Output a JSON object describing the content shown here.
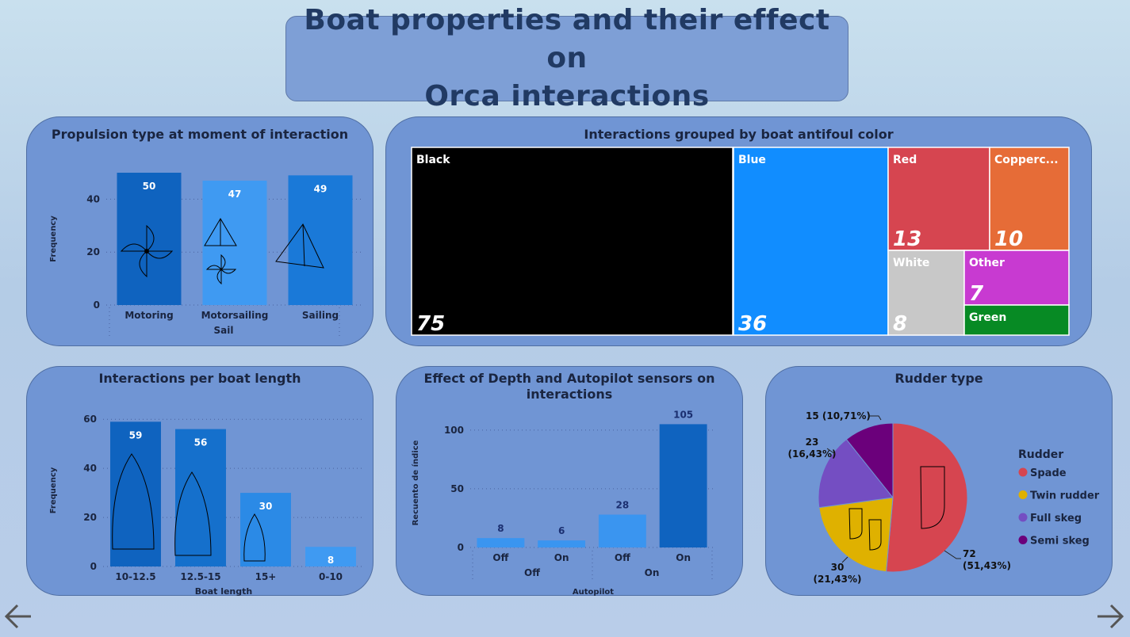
{
  "page": {
    "title_line1": "Boat properties and their effect on",
    "title_line2": "Orca interactions"
  },
  "propulsion": {
    "title": "Propulsion type at moment of interaction",
    "chart_data": {
      "type": "bar",
      "categories": [
        "Motoring",
        "Motorsailing",
        "Sailing"
      ],
      "values": [
        50,
        47,
        49
      ],
      "xlabel": "Sail",
      "ylabel": "Frequency",
      "yticks": [
        0,
        20,
        40
      ],
      "ylim": [
        0,
        50
      ],
      "colors": [
        "#0f63bf",
        "#3f9af2",
        "#1a79d8"
      ]
    }
  },
  "antifoul": {
    "title": "Interactions grouped by boat antifoul color",
    "chart_data": {
      "type": "treemap",
      "items": [
        {
          "label": "Black",
          "value": 75,
          "color": "#000000",
          "shown_value": "75"
        },
        {
          "label": "Blue",
          "value": 36,
          "color": "#118dff",
          "shown_value": "36"
        },
        {
          "label": "Red",
          "value": 13,
          "color": "#d64550",
          "shown_value": "13"
        },
        {
          "label": "Copperc...",
          "value": 10,
          "color": "#e66c37",
          "shown_value": "10"
        },
        {
          "label": "White",
          "value": 8,
          "color": "#c8c8c8",
          "shown_value": "8"
        },
        {
          "label": "Other",
          "value": 7,
          "color": "#c83ad1",
          "shown_value": "7"
        },
        {
          "label": "Green",
          "value": 4,
          "color": "#078a24",
          "shown_value": ""
        }
      ]
    }
  },
  "length": {
    "title": "Interactions per boat length",
    "chart_data": {
      "type": "bar",
      "categories": [
        "10-12.5",
        "12.5-15",
        "15+",
        "0-10"
      ],
      "values": [
        59,
        56,
        30,
        8
      ],
      "xlabel": "Boat length",
      "ylabel": "Frequency",
      "yticks": [
        0,
        20,
        40,
        60
      ],
      "ylim": [
        0,
        62
      ],
      "colors": [
        "#0f63bf",
        "#1570cc",
        "#2b8ae6",
        "#3f9af2"
      ]
    }
  },
  "sensors": {
    "title_line1": "Effect of Depth and Autopilot sensors on",
    "title_line2": "interactions",
    "chart_data": {
      "type": "bar",
      "categories": [
        "Off",
        "On",
        "Off",
        "On"
      ],
      "groups": [
        "Off",
        "On"
      ],
      "values": [
        8,
        6,
        28,
        105
      ],
      "xlabel": "Autopilot",
      "ylabel": "Recuento de índice",
      "yticks": [
        0,
        50,
        100
      ],
      "ylim": [
        0,
        110
      ],
      "colors": [
        "#3a95f0",
        "#3a95f0",
        "#3a95f0",
        "#0f63bf"
      ]
    }
  },
  "rudder": {
    "title": "Rudder type",
    "legend_title": "Rudder",
    "chart_data": {
      "type": "pie",
      "labels": [
        "Spade",
        "Twin rudder",
        "Full skeg",
        "Semi skeg"
      ],
      "values": [
        72,
        30,
        23,
        15
      ],
      "data_labels": [
        "72\n(51,43%)",
        "30\n(21,43%)",
        "23\n(16,43%)",
        "15 (10,71%)"
      ],
      "colors": [
        "#d64550",
        "#dfb100",
        "#744ec2",
        "#6b007b"
      ]
    }
  },
  "nav": {
    "prev_icon": "arrow-left-icon",
    "next_icon": "arrow-right-icon"
  }
}
